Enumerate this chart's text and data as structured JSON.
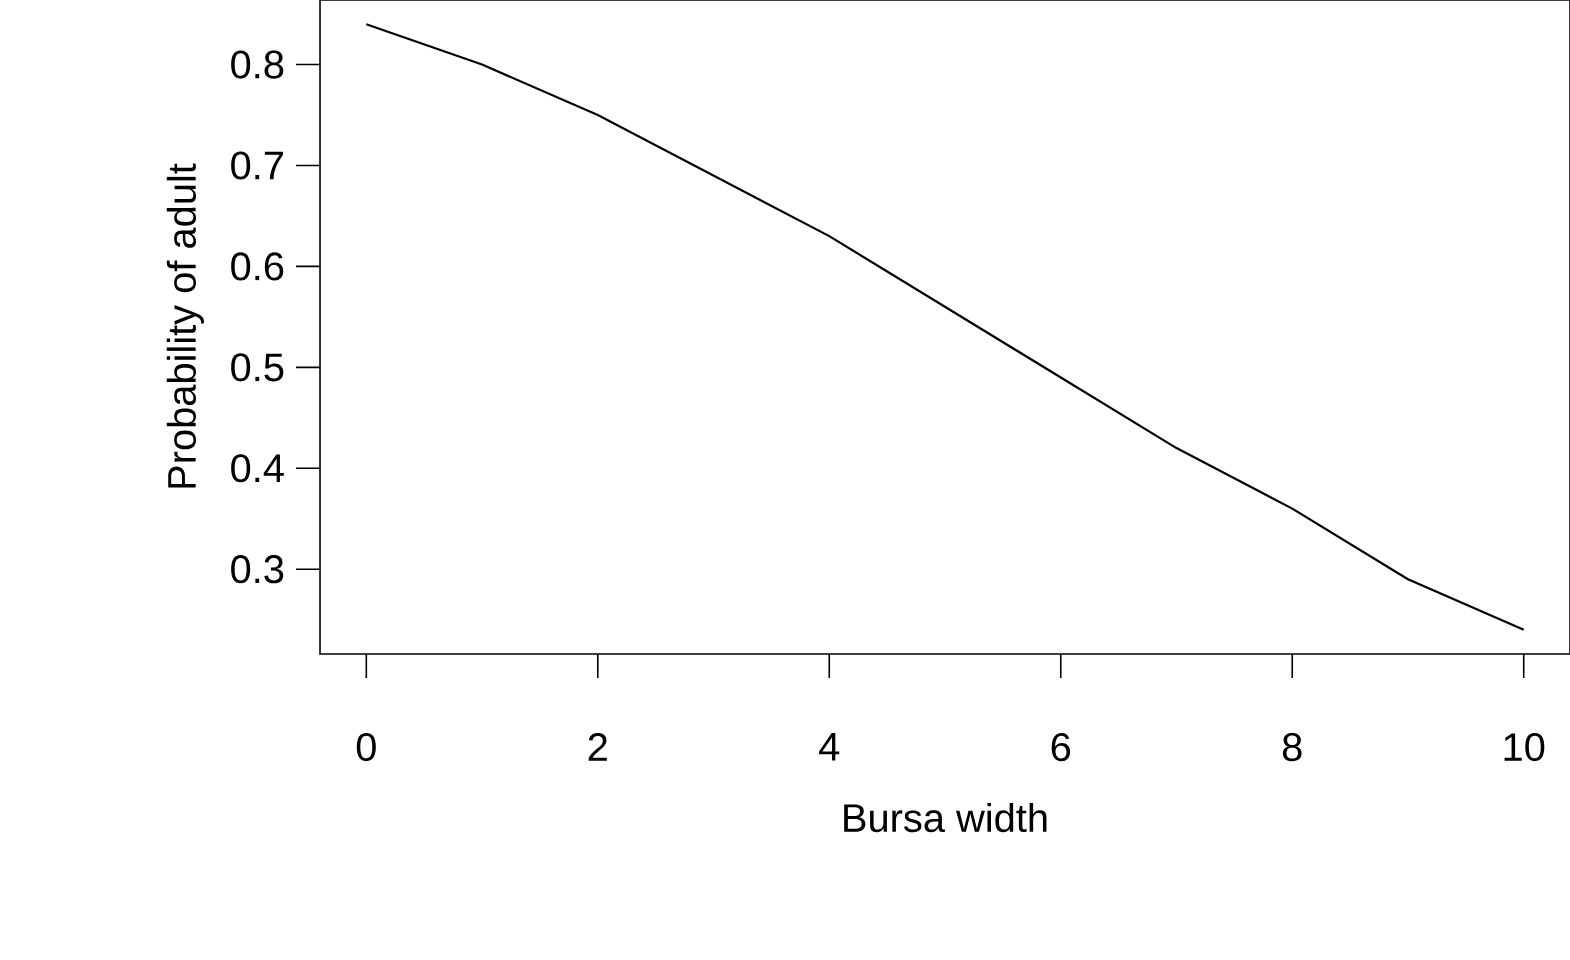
{
  "chart_data": {
    "type": "line",
    "xlabel": "Bursa width",
    "ylabel": "Probability of adult",
    "x": [
      0,
      1,
      2,
      3,
      4,
      5,
      6,
      7,
      8,
      9,
      10
    ],
    "series": [
      {
        "color": "#000000",
        "values": [
          0.84,
          0.8,
          0.75,
          0.69,
          0.63,
          0.56,
          0.49,
          0.42,
          0.36,
          0.29,
          0.24
        ]
      }
    ],
    "xlim": [
      -0.4,
      10.4
    ],
    "ylim": [
      0.216,
      0.864
    ],
    "xticks": [
      0,
      2,
      4,
      6,
      8,
      10
    ],
    "yticks": [
      0.3,
      0.4,
      0.5,
      0.6,
      0.7,
      0.8
    ],
    "grid": false,
    "marker": "none",
    "line_style": "solid"
  }
}
